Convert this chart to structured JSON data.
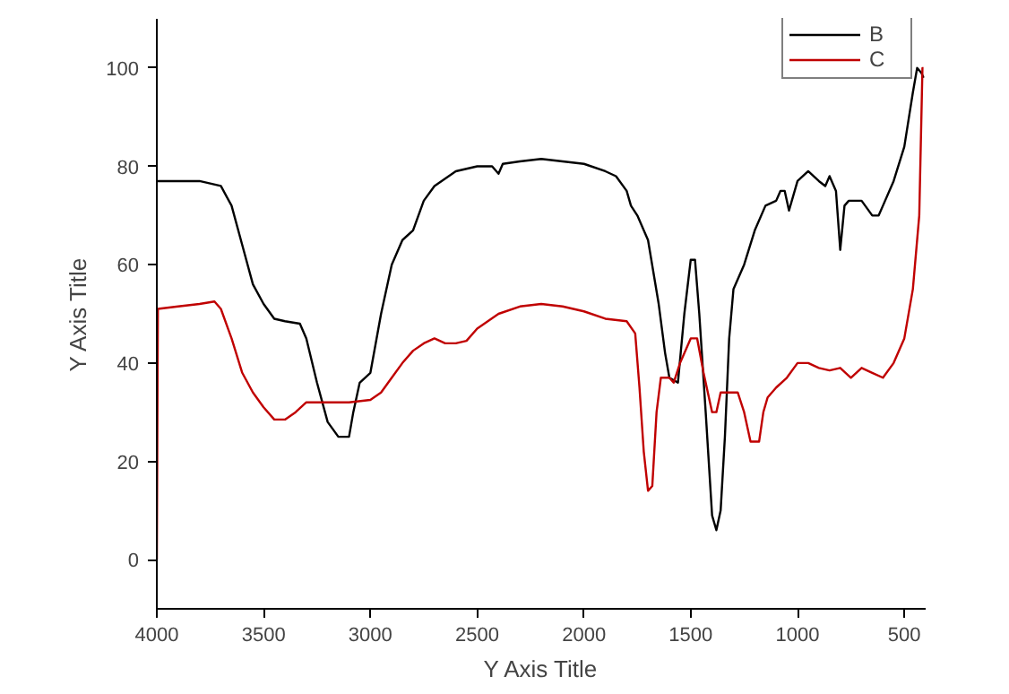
{
  "chart_data": {
    "type": "line",
    "xlabel": "Y Axis Title",
    "ylabel": "Y Axis Title",
    "xlim": [
      4000,
      400
    ],
    "xticks": [
      4000,
      3500,
      3000,
      2500,
      2000,
      1500,
      1000,
      500
    ],
    "ylim": [
      -10,
      110
    ],
    "yticks": [
      0,
      20,
      40,
      60,
      80,
      100
    ],
    "grid": false,
    "legend": "top right",
    "line_style": "solid",
    "series": [
      {
        "name": "B",
        "color": "#000000",
        "x": [
          4000,
          3800,
          3700,
          3650,
          3600,
          3550,
          3500,
          3450,
          3400,
          3330,
          3300,
          3250,
          3200,
          3150,
          3100,
          3080,
          3050,
          3000,
          2950,
          2900,
          2850,
          2800,
          2750,
          2700,
          2600,
          2500,
          2430,
          2400,
          2380,
          2300,
          2200,
          2100,
          2000,
          1900,
          1850,
          1800,
          1780,
          1750,
          1700,
          1650,
          1620,
          1600,
          1560,
          1530,
          1500,
          1480,
          1460,
          1430,
          1400,
          1380,
          1360,
          1340,
          1320,
          1300,
          1250,
          1200,
          1150,
          1100,
          1080,
          1060,
          1040,
          1000,
          950,
          900,
          870,
          850,
          820,
          800,
          780,
          760,
          700,
          650,
          620,
          600,
          550,
          500,
          460,
          440,
          420,
          410
        ],
        "values": [
          77,
          77,
          76,
          72,
          64,
          56,
          52,
          49,
          48.5,
          48,
          45,
          36,
          28,
          25,
          25,
          30,
          36,
          38,
          50,
          60,
          65,
          67,
          73,
          76,
          79,
          80,
          80,
          78.5,
          80.5,
          81,
          81.5,
          81,
          80.5,
          79,
          78,
          75,
          72,
          70,
          65,
          52,
          42,
          37,
          36,
          50,
          61,
          61,
          50,
          30,
          9,
          6,
          10,
          25,
          45,
          55,
          60,
          67,
          72,
          73,
          75,
          75,
          71,
          77,
          79,
          77,
          76,
          78,
          75,
          63,
          72,
          73,
          73,
          70,
          70,
          72,
          77,
          84,
          95,
          100,
          99,
          98
        ]
      },
      {
        "name": "C",
        "color": "#c00000",
        "x": [
          4000,
          3995,
          3900,
          3800,
          3730,
          3700,
          3650,
          3600,
          3550,
          3500,
          3450,
          3400,
          3350,
          3300,
          3200,
          3100,
          3000,
          2950,
          2900,
          2850,
          2800,
          2750,
          2700,
          2650,
          2600,
          2550,
          2500,
          2400,
          2300,
          2200,
          2100,
          2000,
          1900,
          1800,
          1760,
          1740,
          1720,
          1700,
          1680,
          1660,
          1640,
          1600,
          1580,
          1550,
          1500,
          1470,
          1440,
          1400,
          1380,
          1360,
          1320,
          1280,
          1250,
          1220,
          1180,
          1160,
          1140,
          1100,
          1050,
          1000,
          950,
          900,
          850,
          800,
          750,
          700,
          650,
          600,
          550,
          500,
          460,
          430,
          415,
          410
        ],
        "values": [
          0,
          51,
          51.5,
          52,
          52.5,
          51,
          45,
          38,
          34,
          31,
          28.5,
          28.5,
          30,
          32,
          32,
          32,
          32.5,
          34,
          37,
          40,
          42.5,
          44,
          45,
          44,
          44,
          44.5,
          47,
          50,
          51.5,
          52,
          51.5,
          50.5,
          49,
          48.5,
          46,
          35,
          22,
          14,
          15,
          30,
          37,
          37,
          36,
          40,
          45,
          45,
          38,
          30,
          30,
          34,
          34,
          34,
          30,
          24,
          24,
          30,
          33,
          35,
          37,
          40,
          40,
          39,
          38.5,
          39,
          37,
          39,
          38,
          37,
          40,
          45,
          55,
          70,
          100,
          100
        ]
      }
    ]
  }
}
